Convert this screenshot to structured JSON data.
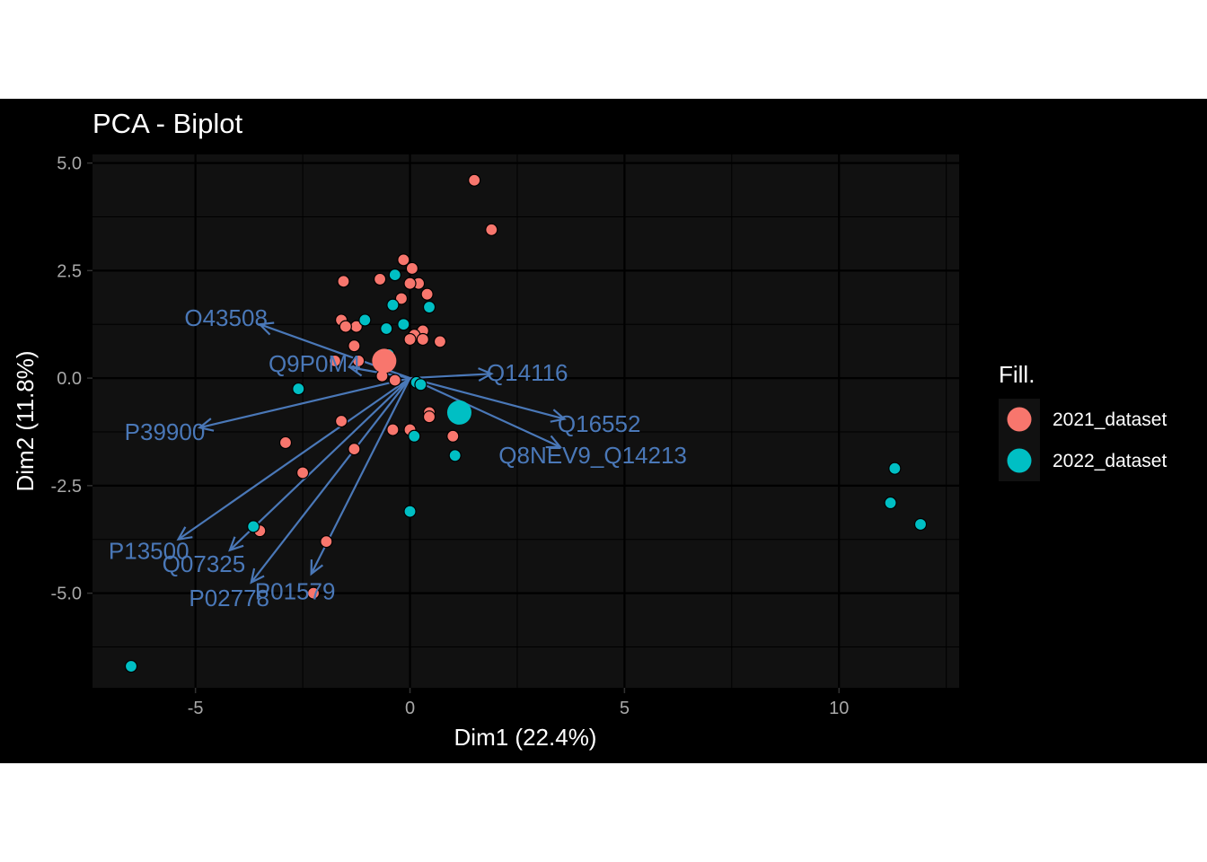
{
  "chart_data": {
    "type": "scatter",
    "title": "PCA - Biplot",
    "xlabel": "Dim1 (22.4%)",
    "ylabel": "Dim2 (11.8%)",
    "xlim": [
      -7.4,
      12.8
    ],
    "ylim": [
      -7.2,
      5.2
    ],
    "x_ticks": [
      -5,
      0,
      5,
      10
    ],
    "x_tick_labels": [
      "-5",
      "0",
      "5",
      "10"
    ],
    "y_ticks": [
      5.0,
      2.5,
      0.0,
      -2.5,
      -5.0
    ],
    "y_tick_labels": [
      "5.0",
      "2.5",
      "0.0",
      "-2.5",
      "-5.0"
    ],
    "grid": true,
    "legend": {
      "title": "Fill.",
      "position": "right",
      "entries": [
        "2021_dataset",
        "2022_dataset"
      ]
    },
    "colors": {
      "2021_dataset": "#F8766D",
      "2022_dataset": "#00BFC4",
      "arrows": "#4A78B8",
      "panel": "#111111",
      "grid": "#000000"
    },
    "series": [
      {
        "name": "2021_dataset",
        "points": [
          [
            1.5,
            4.6
          ],
          [
            1.9,
            3.45
          ],
          [
            -0.15,
            2.75
          ],
          [
            0.05,
            2.55
          ],
          [
            -0.7,
            2.3
          ],
          [
            -1.55,
            2.25
          ],
          [
            0.2,
            2.2
          ],
          [
            0.0,
            2.2
          ],
          [
            0.4,
            1.95
          ],
          [
            -0.2,
            1.85
          ],
          [
            -1.6,
            1.35
          ],
          [
            -1.25,
            1.2
          ],
          [
            -1.5,
            1.2
          ],
          [
            0.3,
            1.1
          ],
          [
            0.1,
            1.0
          ],
          [
            0.0,
            0.9
          ],
          [
            0.3,
            0.9
          ],
          [
            0.7,
            0.85
          ],
          [
            -1.3,
            0.75
          ],
          [
            -1.75,
            0.4
          ],
          [
            -1.2,
            0.4
          ],
          [
            -0.65,
            0.05
          ],
          [
            -0.35,
            -0.05
          ],
          [
            -1.6,
            -1.0
          ],
          [
            0.45,
            -0.8
          ],
          [
            0.45,
            -0.9
          ],
          [
            0.0,
            -1.2
          ],
          [
            -0.4,
            -1.2
          ],
          [
            1.0,
            -1.35
          ],
          [
            -2.9,
            -1.5
          ],
          [
            -1.3,
            -1.65
          ],
          [
            -2.5,
            -2.2
          ],
          [
            -3.5,
            -3.55
          ],
          [
            -1.95,
            -3.8
          ],
          [
            -2.25,
            -5.0
          ]
        ],
        "centroid": [
          -0.6,
          0.4
        ]
      },
      {
        "name": "2022_dataset",
        "points": [
          [
            -0.35,
            2.4
          ],
          [
            -0.4,
            1.7
          ],
          [
            0.45,
            1.65
          ],
          [
            -1.05,
            1.35
          ],
          [
            -0.55,
            1.15
          ],
          [
            -0.15,
            1.25
          ],
          [
            -0.5,
            0.55
          ],
          [
            0.15,
            -0.1
          ],
          [
            0.25,
            -0.15
          ],
          [
            -2.6,
            -0.25
          ],
          [
            0.1,
            -1.35
          ],
          [
            1.05,
            -1.8
          ],
          [
            0.0,
            -3.1
          ],
          [
            -3.65,
            -3.45
          ],
          [
            -6.5,
            -6.7
          ],
          [
            11.3,
            -2.1
          ],
          [
            11.2,
            -2.9
          ],
          [
            11.9,
            -3.4
          ]
        ],
        "centroid": [
          1.15,
          -0.8
        ]
      }
    ],
    "loadings": [
      {
        "name": "O43508",
        "x": -3.5,
        "y": 1.25
      },
      {
        "name": "Q14116",
        "x": 1.9,
        "y": 0.1
      },
      {
        "name": "Q9P0M4",
        "x": -1.4,
        "y": 0.25
      },
      {
        "name": "Q16552",
        "x": 3.6,
        "y": -0.95
      },
      {
        "name": "P39900",
        "x": -4.9,
        "y": -1.15
      },
      {
        "name": "Q8NEV9_Q14213",
        "x": 3.5,
        "y": -1.6
      },
      {
        "name": "P13500",
        "x": -5.4,
        "y": -3.75
      },
      {
        "name": "Q07325",
        "x": -4.2,
        "y": -4.0
      },
      {
        "name": "P02778",
        "x": -3.7,
        "y": -4.75
      },
      {
        "name": "P01579",
        "x": -2.3,
        "y": -4.55
      }
    ]
  }
}
